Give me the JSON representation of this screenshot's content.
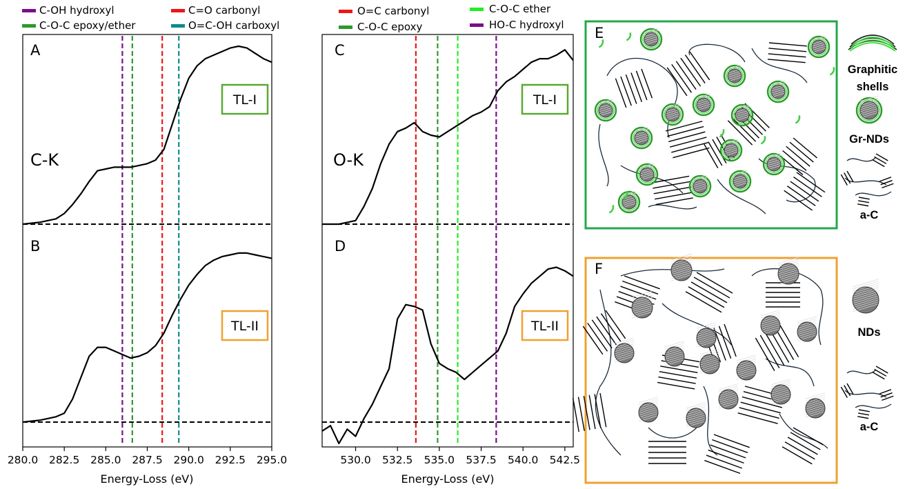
{
  "colors": {
    "purple": "#7a0f8a",
    "green": "#2b9a2b",
    "red": "#ee1515",
    "teal": "#0f8a8a",
    "light_green": "#22ee22",
    "box_green": "#22a84a",
    "box_orange": "#f0a030"
  },
  "legend_left": [
    {
      "label": "C-OH hydroxyl",
      "color": "#7a0f8a"
    },
    {
      "label": "C=O carbonyl",
      "color": "#ee1515"
    },
    {
      "label": "C-O-C epoxy/ether",
      "color": "#2b9a2b"
    },
    {
      "label": "O=C-OH carboxyl",
      "color": "#0f8a8a"
    }
  ],
  "legend_right": [
    {
      "label": "O=C carbonyl",
      "color": "#ee1515"
    },
    {
      "label": "C-O-C ether",
      "color": "#22ee22"
    },
    {
      "label": "C-O-C epoxy",
      "color": "#2b9a2b"
    },
    {
      "label": "HO-C hydroxyl",
      "color": "#7a0f8a"
    }
  ],
  "chart_data": [
    {
      "type": "line",
      "panels": [
        "A",
        "B"
      ],
      "edge_label": "C-K",
      "xlabel": "Energy-Loss (eV)",
      "xlim": [
        280.0,
        295.0
      ],
      "x_ticks": [
        "280.0",
        "282.5",
        "285.0",
        "287.5",
        "290.0",
        "292.5",
        "295.0"
      ],
      "tick_values": [
        280.0,
        282.5,
        285.0,
        287.5,
        290.0,
        292.5,
        295.0
      ],
      "reference_lines": [
        {
          "name": "C-OH hydroxyl",
          "x": 286.0,
          "color": "#7a0f8a"
        },
        {
          "name": "C-O-C epoxy/ether",
          "x": 286.6,
          "color": "#2b9a2b"
        },
        {
          "name": "C=O carbonyl",
          "x": 288.4,
          "color": "#ee1515"
        },
        {
          "name": "O=C-OH carboxyl",
          "x": 289.4,
          "color": "#0f8a8a"
        }
      ],
      "series": [
        {
          "name": "TL-I",
          "panel": "A",
          "x": [
            280.0,
            281.0,
            282.0,
            282.5,
            283.0,
            283.5,
            284.0,
            284.5,
            285.0,
            285.5,
            286.0,
            286.5,
            287.0,
            287.5,
            288.0,
            288.5,
            289.0,
            289.5,
            290.0,
            290.5,
            291.0,
            291.5,
            292.0,
            292.5,
            293.0,
            293.5,
            294.0,
            294.5,
            295.0
          ],
          "y": [
            0.0,
            0.01,
            0.03,
            0.06,
            0.11,
            0.17,
            0.24,
            0.3,
            0.31,
            0.32,
            0.32,
            0.32,
            0.33,
            0.34,
            0.36,
            0.42,
            0.56,
            0.7,
            0.82,
            0.89,
            0.93,
            0.95,
            0.97,
            0.99,
            1.0,
            0.99,
            0.96,
            0.93,
            0.91
          ]
        },
        {
          "name": "TL-II",
          "panel": "B",
          "x": [
            280.0,
            281.0,
            282.0,
            282.5,
            283.0,
            283.5,
            284.0,
            284.5,
            285.0,
            285.5,
            286.0,
            286.5,
            287.0,
            287.5,
            288.0,
            288.5,
            289.0,
            289.5,
            290.0,
            290.5,
            291.0,
            291.5,
            292.0,
            292.5,
            293.0,
            293.5,
            294.0,
            294.5,
            295.0
          ],
          "y": [
            0.0,
            0.01,
            0.03,
            0.05,
            0.13,
            0.25,
            0.37,
            0.42,
            0.42,
            0.4,
            0.38,
            0.36,
            0.37,
            0.39,
            0.43,
            0.5,
            0.6,
            0.69,
            0.77,
            0.83,
            0.88,
            0.91,
            0.93,
            0.94,
            0.95,
            0.95,
            0.94,
            0.93,
            0.92
          ]
        }
      ],
      "baseline": 0.0
    },
    {
      "type": "line",
      "panels": [
        "C",
        "D"
      ],
      "edge_label": "O-K",
      "xlabel": "Energy-Loss (eV)",
      "xlim": [
        528.0,
        543.0
      ],
      "x_ticks": [
        "530.0",
        "532.5",
        "535.0",
        "537.5",
        "540.0",
        "542.5"
      ],
      "tick_values": [
        530.0,
        532.5,
        535.0,
        537.5,
        540.0,
        542.5
      ],
      "reference_lines": [
        {
          "name": "O=C carbonyl",
          "x": 533.6,
          "color": "#ee1515"
        },
        {
          "name": "C-O-C epoxy",
          "x": 534.9,
          "color": "#2b9a2b"
        },
        {
          "name": "C-O-C ether",
          "x": 536.1,
          "color": "#22ee22"
        },
        {
          "name": "HO-C hydroxyl",
          "x": 538.4,
          "color": "#7a0f8a"
        }
      ],
      "series": [
        {
          "name": "TL-I",
          "panel": "C",
          "x": [
            528.0,
            529.0,
            530.0,
            530.5,
            531.0,
            531.5,
            532.0,
            532.5,
            533.0,
            533.5,
            534.0,
            534.5,
            535.0,
            535.5,
            536.0,
            536.5,
            537.0,
            537.5,
            538.0,
            538.5,
            539.0,
            539.5,
            540.0,
            540.5,
            541.0,
            541.5,
            542.0,
            542.5,
            543.0
          ],
          "y": [
            0.0,
            0.0,
            0.02,
            0.1,
            0.2,
            0.34,
            0.45,
            0.52,
            0.54,
            0.57,
            0.52,
            0.5,
            0.49,
            0.52,
            0.55,
            0.58,
            0.61,
            0.63,
            0.66,
            0.75,
            0.8,
            0.83,
            0.87,
            0.91,
            0.93,
            0.93,
            0.95,
            0.98,
            0.92
          ]
        },
        {
          "name": "TL-II",
          "panel": "D",
          "x": [
            528.0,
            528.5,
            529.0,
            529.5,
            530.0,
            530.5,
            531.0,
            531.5,
            532.0,
            532.5,
            533.0,
            533.5,
            534.0,
            534.5,
            535.0,
            535.5,
            536.0,
            536.5,
            537.0,
            537.5,
            538.0,
            538.5,
            539.0,
            539.5,
            540.0,
            540.5,
            541.0,
            541.5,
            542.0,
            542.5,
            543.0
          ],
          "y": [
            -0.05,
            -0.02,
            -0.12,
            -0.04,
            -0.08,
            0.02,
            0.1,
            0.2,
            0.3,
            0.58,
            0.66,
            0.65,
            0.63,
            0.44,
            0.33,
            0.3,
            0.28,
            0.24,
            0.28,
            0.32,
            0.36,
            0.4,
            0.5,
            0.65,
            0.72,
            0.78,
            0.82,
            0.86,
            0.87,
            0.85,
            0.82
          ]
        }
      ],
      "baseline": 0.0
    }
  ],
  "panel_labels": {
    "A": "A",
    "B": "B",
    "C": "C",
    "D": "D",
    "E": "E",
    "F": "F"
  },
  "edge_labels": {
    "ck": "C-K",
    "ok": "O-K"
  },
  "tl_boxes": {
    "tl1": "TL-I",
    "tl2": "TL-II"
  },
  "axis": {
    "xlabel_left": "Energy-Loss (eV)",
    "xlabel_right": "Energy-Loss (eV)"
  },
  "schematic": {
    "E_legend": {
      "graphitic": [
        "Graphitic",
        "shells"
      ],
      "grnds": "Gr-NDs",
      "ac": "a-C"
    },
    "F_legend": {
      "nds": "NDs",
      "ac": "a-C"
    }
  }
}
